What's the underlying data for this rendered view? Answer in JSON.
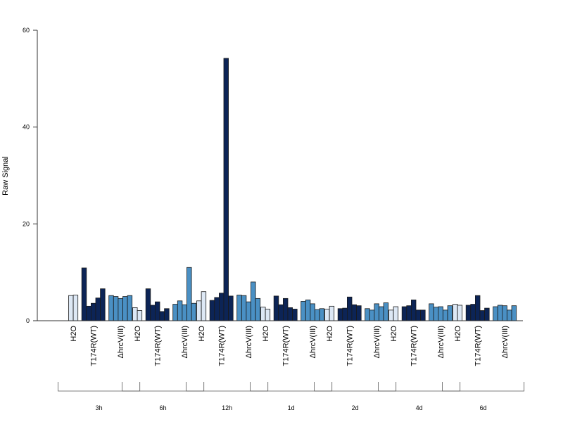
{
  "chart_data": {
    "type": "bar",
    "ylabel": "Raw Signal",
    "ylim": [
      0,
      60
    ],
    "yticks": [
      0,
      20,
      40,
      60
    ],
    "grid": false,
    "legend": "none",
    "colors": {
      "H2O": "#dde8f5",
      "T174R(WT)": "#0c2456",
      "ΔhrcV(III)": "#4a90c4"
    },
    "groups": [
      {
        "label": "3h",
        "treatments": [
          {
            "name": "H2O",
            "values": [
              5.2,
              5.3
            ]
          },
          {
            "name": "T174R(WT)",
            "values": [
              10.9,
              3.0,
              3.6,
              4.7,
              6.6
            ]
          },
          {
            "name": "ΔhrcV(III)",
            "values": [
              5.2,
              5.0,
              4.6,
              5.0,
              5.2
            ]
          }
        ]
      },
      {
        "label": "6h",
        "treatments": [
          {
            "name": "H2O",
            "values": [
              2.7,
              2.1
            ]
          },
          {
            "name": "T174R(WT)",
            "values": [
              6.6,
              3.2,
              3.9,
              1.9,
              2.5
            ]
          },
          {
            "name": "ΔhrcV(III)",
            "values": [
              3.4,
              4.1,
              3.3,
              11.0,
              3.6
            ]
          }
        ]
      },
      {
        "label": "12h",
        "treatments": [
          {
            "name": "H2O",
            "values": [
              4.1,
              6.0
            ]
          },
          {
            "name": "T174R(WT)",
            "values": [
              4.2,
              4.8,
              5.7,
              54.2,
              5.1
            ]
          },
          {
            "name": "ΔhrcV(III)",
            "values": [
              5.3,
              5.2,
              3.9,
              8.0,
              4.6
            ]
          }
        ]
      },
      {
        "label": "1d",
        "treatments": [
          {
            "name": "H2O",
            "values": [
              2.8,
              2.4
            ]
          },
          {
            "name": "T174R(WT)",
            "values": [
              5.1,
              3.3,
              4.6,
              2.7,
              2.4
            ]
          },
          {
            "name": "ΔhrcV(III)",
            "values": [
              4.0,
              4.3,
              3.5,
              2.3,
              2.5
            ]
          }
        ]
      },
      {
        "label": "2d",
        "treatments": [
          {
            "name": "H2O",
            "values": [
              2.4,
              3.0
            ]
          },
          {
            "name": "T174R(WT)",
            "values": [
              2.5,
              2.6,
              4.9,
              3.3,
              3.1
            ]
          },
          {
            "name": "ΔhrcV(III)",
            "values": [
              2.5,
              2.2,
              3.5,
              2.9,
              3.7
            ]
          }
        ]
      },
      {
        "label": "4d",
        "treatments": [
          {
            "name": "H2O",
            "values": [
              2.2,
              2.9
            ]
          },
          {
            "name": "T174R(WT)",
            "values": [
              2.9,
              3.1,
              4.3,
              2.2,
              2.2
            ]
          },
          {
            "name": "ΔhrcV(III)",
            "values": [
              3.5,
              2.8,
              2.9,
              2.2,
              3.1
            ]
          }
        ]
      },
      {
        "label": "6d",
        "treatments": [
          {
            "name": "H2O",
            "values": [
              3.4,
              3.2
            ]
          },
          {
            "name": "T174R(WT)",
            "values": [
              3.2,
              3.4,
              5.2,
              2.1,
              2.6
            ]
          },
          {
            "name": "ΔhrcV(III)",
            "values": [
              2.9,
              3.2,
              3.1,
              2.2,
              3.1
            ]
          }
        ]
      }
    ]
  }
}
